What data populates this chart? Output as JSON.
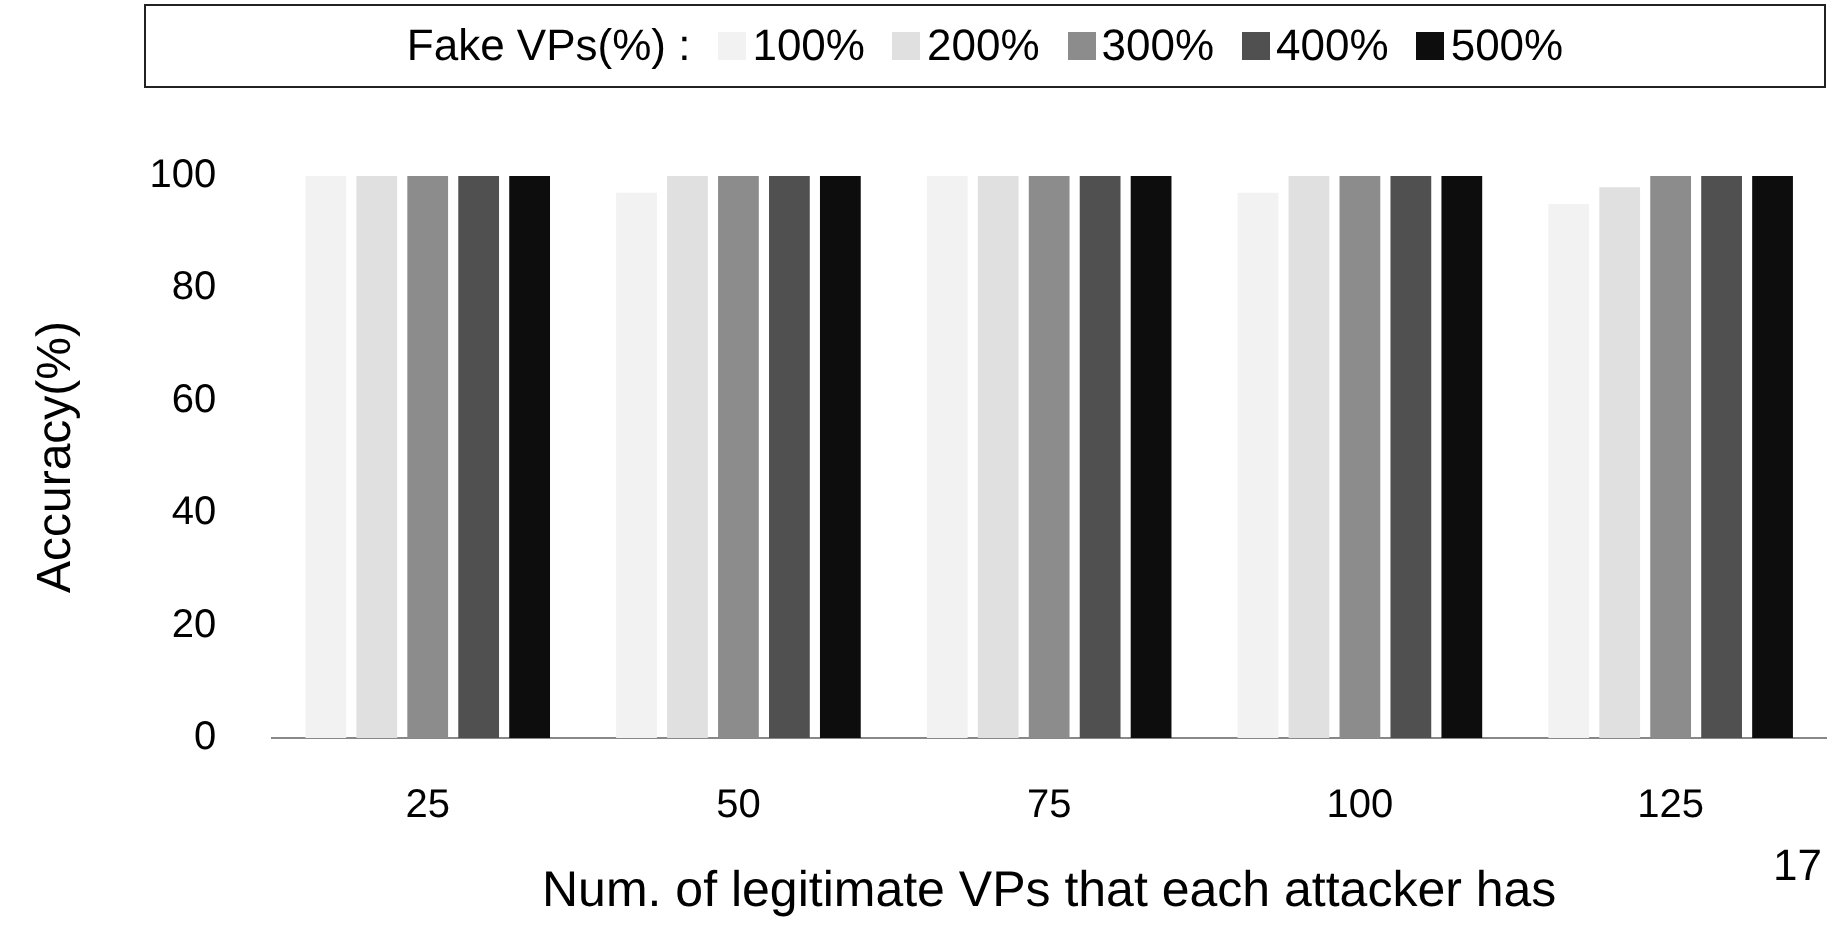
{
  "chart_data": {
    "type": "bar",
    "categories": [
      "25",
      "50",
      "75",
      "100",
      "125"
    ],
    "xlabel": "Num. of legitimate VPs that each attacker has",
    "ylabel": "Accuracy(%)",
    "legend_title": "Fake VPs(%) :",
    "legend": "top",
    "grid": false,
    "ylim": [
      0,
      100
    ],
    "yticks": [
      0,
      20,
      40,
      60,
      80,
      100
    ],
    "series": [
      {
        "name": "100%",
        "color": "#f2f2f2",
        "values": [
          100,
          97,
          100,
          97,
          95
        ]
      },
      {
        "name": "200%",
        "color": "#e0e0e0",
        "values": [
          100,
          100,
          100,
          100,
          98
        ]
      },
      {
        "name": "300%",
        "color": "#8c8c8c",
        "values": [
          100,
          100,
          100,
          100,
          100
        ]
      },
      {
        "name": "400%",
        "color": "#505050",
        "values": [
          100,
          100,
          100,
          100,
          100
        ]
      },
      {
        "name": "500%",
        "color": "#0d0d0d",
        "values": [
          100,
          100,
          100,
          100,
          100
        ]
      }
    ],
    "annotations": [
      "17"
    ]
  }
}
